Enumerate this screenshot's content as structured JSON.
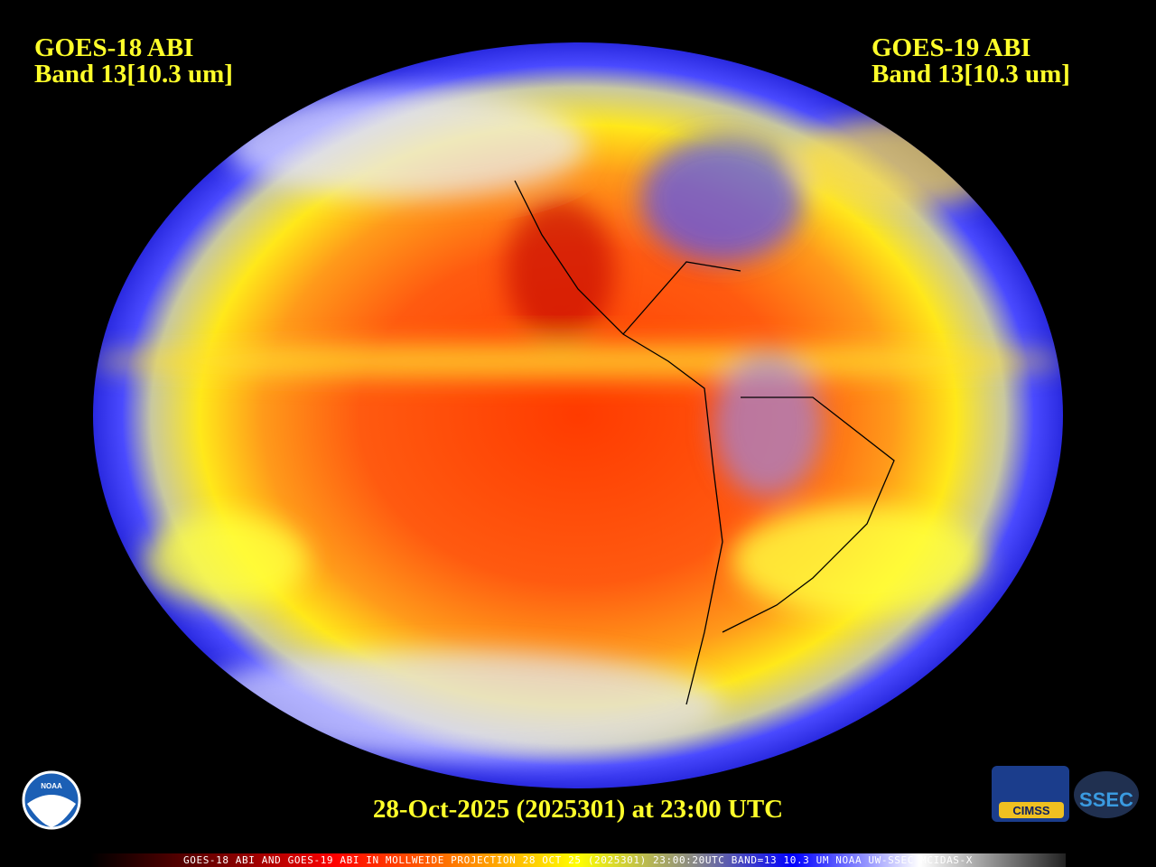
{
  "labels": {
    "left": {
      "line1": "GOES-18 ABI",
      "line2": "Band 13[10.3 um]"
    },
    "right": {
      "line1": "GOES-19 ABI",
      "line2": "Band 13[10.3 um]"
    }
  },
  "timestamp": "28-Oct-2025 (2025301) at 23:00 UTC",
  "footer": "GOES-18 ABI AND GOES-19 ABI IN MOLLWEIDE PROJECTION 28 OCT 25 (2025301) 23:00:20UTC BAND=13 10.3 UM NOAA UW-SSEC MCIDAS-X",
  "logos": {
    "noaa": "NOAA",
    "cimss": "CIMSS",
    "ssec": "SSEC"
  }
}
